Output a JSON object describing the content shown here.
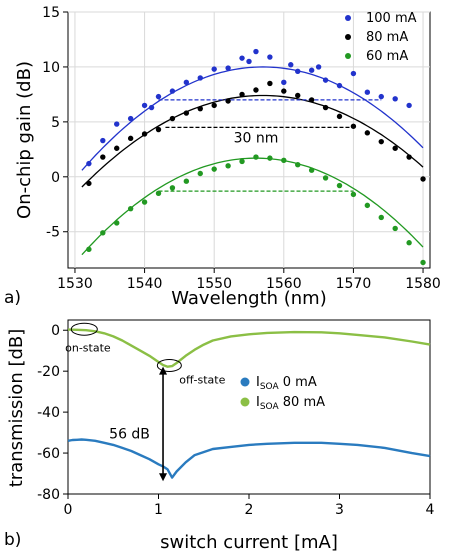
{
  "chart_data": [
    {
      "panel_label": "a)",
      "type": "scatter",
      "xlabel": "Wavelength (nm)",
      "ylabel": "On-chip gain (dB)",
      "xlim": [
        1529,
        1581
      ],
      "ylim": [
        -8.3,
        15
      ],
      "xticks": [
        1530,
        1540,
        1550,
        1560,
        1570,
        1580
      ],
      "yticks": [
        -5,
        0,
        5,
        10,
        15
      ],
      "grid": true,
      "legend_position": "top-right",
      "series": [
        {
          "name": "100 mA",
          "color": "#2233cc",
          "fit": {
            "peak_x": 1557,
            "peak_y": 10.0,
            "y_at_1532": 1.3
          },
          "flat_line": {
            "x_start": 1542,
            "x_end": 1574,
            "y": 7.0
          },
          "x": [
            1532,
            1534,
            1536,
            1538,
            1540,
            1541,
            1542,
            1544,
            1546,
            1548,
            1550,
            1552,
            1554,
            1555,
            1556,
            1558,
            1560,
            1561,
            1562,
            1564,
            1565,
            1566,
            1568,
            1570,
            1572,
            1574,
            1576,
            1578
          ],
          "y": [
            1.2,
            3.3,
            4.8,
            5.3,
            6.5,
            6.3,
            7.3,
            7.8,
            8.6,
            9.0,
            9.8,
            9.9,
            10.8,
            10.5,
            11.4,
            10.9,
            8.6,
            10.2,
            9.6,
            9.7,
            10.0,
            8.8,
            8.3,
            9.4,
            7.7,
            7.3,
            7.1,
            6.5
          ]
        },
        {
          "name": "80 mA",
          "color": "#000000",
          "fit": {
            "peak_x": 1557,
            "peak_y": 7.4,
            "y_at_1532": -0.3
          },
          "flat_line": {
            "x_start": 1543,
            "x_end": 1570,
            "y": 4.5
          },
          "x": [
            1532,
            1534,
            1536,
            1538,
            1540,
            1542,
            1544,
            1546,
            1548,
            1550,
            1552,
            1554,
            1556,
            1558,
            1560,
            1562,
            1564,
            1566,
            1568,
            1570,
            1572,
            1574,
            1576,
            1578,
            1580
          ],
          "y": [
            -0.6,
            1.8,
            2.6,
            3.5,
            3.9,
            4.3,
            5.3,
            5.8,
            6.2,
            6.5,
            6.9,
            7.5,
            7.9,
            8.5,
            7.8,
            7.4,
            7.0,
            6.3,
            5.5,
            4.6,
            4.0,
            3.2,
            2.6,
            1.8,
            -0.2
          ]
        },
        {
          "name": "60 mA",
          "color": "#229922",
          "fit": {
            "peak_x": 1556,
            "peak_y": 1.7,
            "y_at_1532": -6.4
          },
          "flat_line": {
            "x_start": 1542,
            "x_end": 1570,
            "y": -1.3
          },
          "x": [
            1532,
            1534,
            1536,
            1538,
            1540,
            1542,
            1544,
            1546,
            1548,
            1550,
            1552,
            1554,
            1556,
            1558,
            1560,
            1562,
            1564,
            1566,
            1568,
            1570,
            1572,
            1574,
            1576,
            1578,
            1580
          ],
          "y": [
            -6.6,
            -5.1,
            -4.2,
            -2.9,
            -2.3,
            -1.5,
            -1.0,
            -0.4,
            0.3,
            0.7,
            1.0,
            1.4,
            1.8,
            1.7,
            1.5,
            1.1,
            0.6,
            -0.1,
            -0.8,
            -1.6,
            -2.6,
            -3.7,
            -4.7,
            -6.0,
            -7.8
          ]
        }
      ],
      "annotations": [
        {
          "text": "30 nm",
          "x": 1556,
          "y": 3.1
        }
      ]
    },
    {
      "panel_label": "b)",
      "type": "line",
      "xlabel": "switch current [mA]",
      "ylabel": "transmission [dB]",
      "xlim": [
        0,
        4
      ],
      "ylim": [
        -80,
        5
      ],
      "xticks": [
        0,
        1,
        2,
        3,
        4
      ],
      "yticks": [
        0,
        -20,
        -40,
        -60,
        -80
      ],
      "grid": false,
      "legend_position": "center-right",
      "series": [
        {
          "legend_main": "I",
          "legend_sub": "SOA",
          "legend_rest": " 0 mA",
          "color": "#2a7bbf",
          "x": [
            0.0,
            0.05,
            0.1,
            0.15,
            0.2,
            0.3,
            0.4,
            0.5,
            0.6,
            0.7,
            0.8,
            0.9,
            1.0,
            1.05,
            1.1,
            1.15,
            1.2,
            1.3,
            1.4,
            1.6,
            1.8,
            2.0,
            2.2,
            2.5,
            2.8,
            3.0,
            3.2,
            3.5,
            3.8,
            4.0
          ],
          "y": [
            -54,
            -53.6,
            -53.5,
            -53.4,
            -53.5,
            -54,
            -55,
            -56,
            -57.5,
            -59,
            -61,
            -63,
            -65.5,
            -66.5,
            -68,
            -72,
            -69,
            -64.5,
            -61,
            -58,
            -57,
            -56,
            -55.5,
            -55,
            -55,
            -55.5,
            -56,
            -57.5,
            -60,
            -61.5
          ]
        },
        {
          "legend_main": "I",
          "legend_sub": "SOA",
          "legend_rest": " 80 mA",
          "color": "#8bbf45",
          "x": [
            0.0,
            0.1,
            0.2,
            0.3,
            0.4,
            0.5,
            0.6,
            0.7,
            0.8,
            0.9,
            1.0,
            1.05,
            1.1,
            1.15,
            1.2,
            1.3,
            1.4,
            1.5,
            1.6,
            1.8,
            2.0,
            2.2,
            2.5,
            2.8,
            3.0,
            3.2,
            3.5,
            3.8,
            4.0
          ],
          "y": [
            0.3,
            0.2,
            0.0,
            -0.5,
            -1.5,
            -3.0,
            -5.0,
            -7.5,
            -10.0,
            -12.5,
            -15.5,
            -17.0,
            -17.8,
            -17.5,
            -16.0,
            -12.5,
            -9.5,
            -7.0,
            -5.0,
            -3.0,
            -2.0,
            -1.3,
            -0.9,
            -1.0,
            -1.5,
            -2.3,
            -3.5,
            -5.5,
            -7.0
          ]
        }
      ],
      "annotations": [
        {
          "text": "on-state",
          "x": 0.22,
          "y": -4.5
        },
        {
          "text": "off-state",
          "x": 1.45,
          "y": -24
        },
        {
          "text": "56 dB",
          "x": 0.68,
          "y": -53
        }
      ],
      "arrow": {
        "x": 1.05,
        "y_top": -17.8,
        "y_bottom": -73.8
      }
    }
  ]
}
